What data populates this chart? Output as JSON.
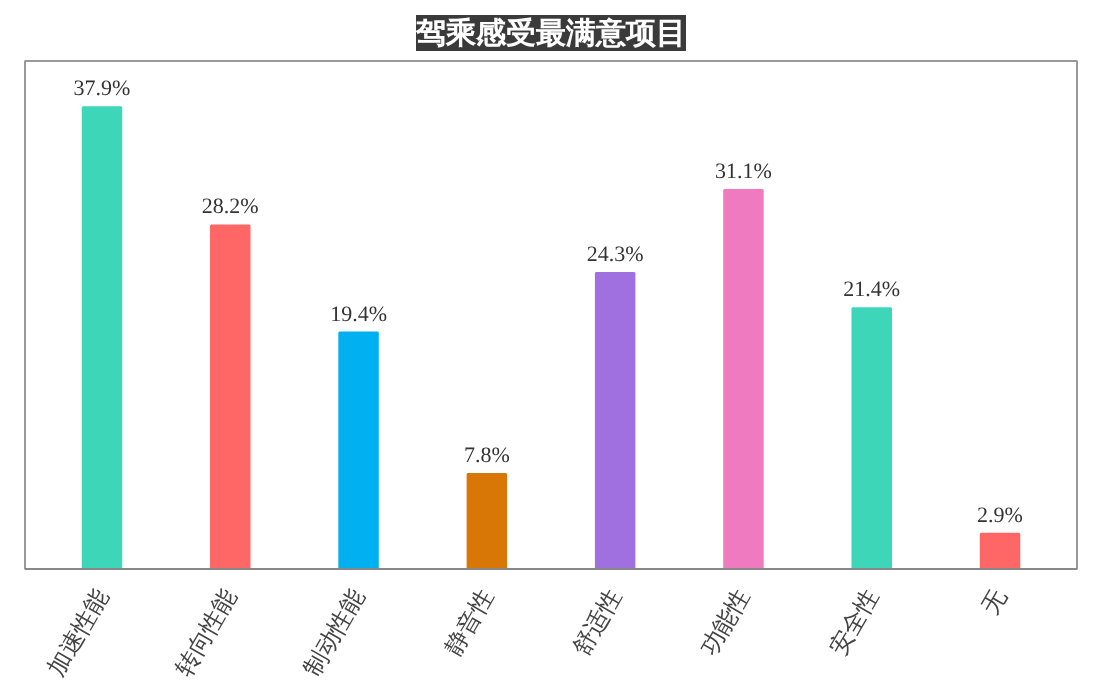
{
  "chart_data": {
    "type": "bar",
    "title": "驾乘感受最满意项目",
    "categories": [
      "加速性能",
      "转向性能",
      "制动性能",
      "静音性",
      "舒适性",
      "功能性",
      "安全性",
      "无"
    ],
    "values": [
      37.9,
      28.2,
      19.4,
      7.8,
      24.3,
      31.1,
      21.4,
      2.9
    ],
    "colors": [
      "#3dd6b8",
      "#ff6666",
      "#00b0f0",
      "#d97706",
      "#a070e0",
      "#f07ac0",
      "#3dd6b8",
      "#ff6666"
    ],
    "value_labels": [
      "37.9%",
      "28.2%",
      "19.4%",
      "7.8%",
      "24.3%",
      "31.1%",
      "21.4%",
      "2.9%"
    ],
    "grid": false
  }
}
